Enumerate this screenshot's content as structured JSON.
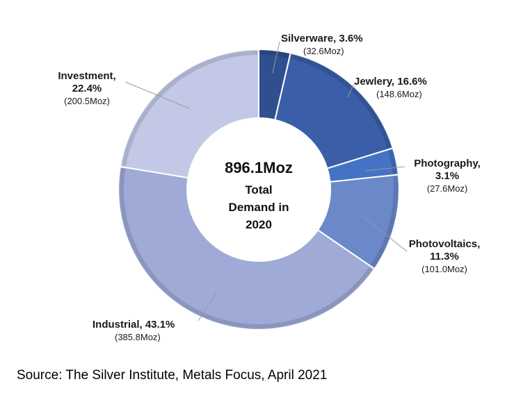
{
  "chart_data": {
    "type": "pie",
    "title": "",
    "total_value": "896.1Moz",
    "center_lines": [
      "Total",
      "Demand in",
      "2020"
    ],
    "legend": "none",
    "slices": [
      {
        "label_line1": "Silverware, 3.6%",
        "label_line2": "",
        "amount": "(32.6Moz)",
        "percent": 3.6,
        "value": 32.6,
        "color": "#2f4f8f"
      },
      {
        "label_line1": "Jewlery, 16.6%",
        "label_line2": "",
        "amount": "(148.6Moz)",
        "percent": 16.6,
        "value": 148.6,
        "color": "#3a5fa8"
      },
      {
        "label_line1": "Photography,",
        "label_line2": "3.1%",
        "amount": "(27.6Moz)",
        "percent": 3.1,
        "value": 27.6,
        "color": "#4472c4"
      },
      {
        "label_line1": "Photovoltaics,",
        "label_line2": "11.3%",
        "amount": "(101.0Moz)",
        "percent": 11.3,
        "value": 101.0,
        "color": "#6b88c9"
      },
      {
        "label_line1": "Industrial, 43.1%",
        "label_line2": "",
        "amount": "(385.8Moz)",
        "percent": 43.1,
        "value": 385.8,
        "color": "#9faad6"
      },
      {
        "label_line1": "Investment,",
        "label_line2": "22.4%",
        "amount": "(200.5Moz)",
        "percent": 22.4,
        "value": 200.5,
        "color": "#c2c8e6"
      }
    ]
  },
  "source": "Source: The Silver Institute, Metals Focus, April 2021"
}
